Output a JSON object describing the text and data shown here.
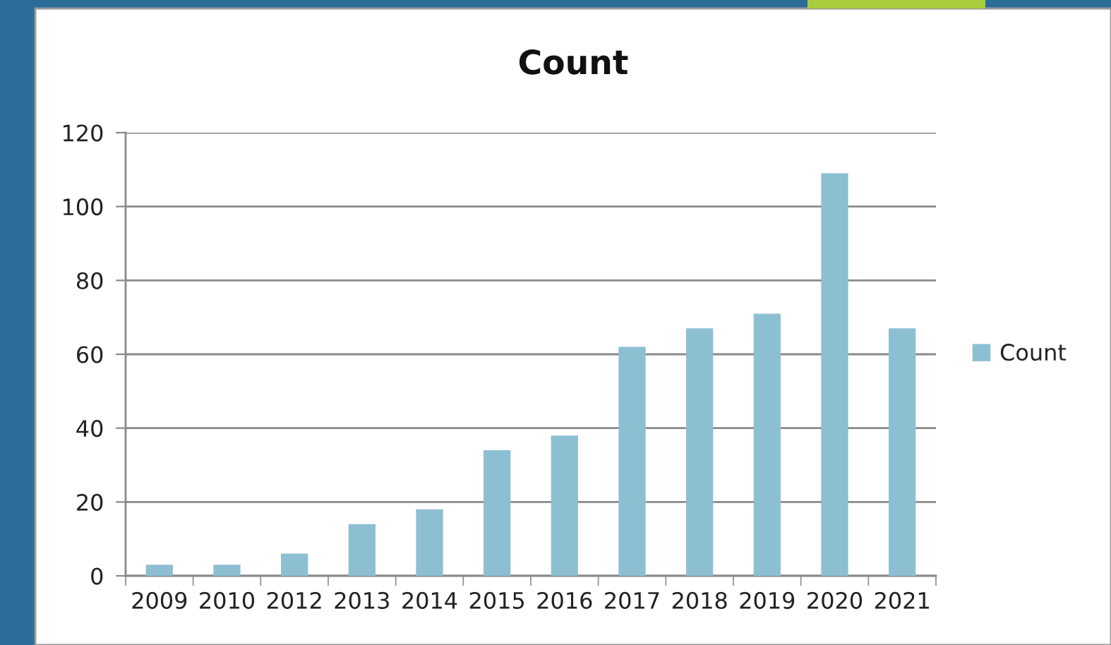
{
  "chart_data": {
    "type": "bar",
    "title": "Count",
    "categories": [
      "2009",
      "2010",
      "2012",
      "2013",
      "2014",
      "2015",
      "2016",
      "2017",
      "2018",
      "2019",
      "2020",
      "2021"
    ],
    "series": [
      {
        "name": "Count",
        "color": "#8dbfd3",
        "values": [
          3,
          3,
          6,
          14,
          18,
          34,
          38,
          62,
          67,
          71,
          109,
          67
        ]
      }
    ],
    "ylim": [
      0,
      120
    ],
    "yticks": [
      0,
      20,
      40,
      60,
      80,
      100,
      120
    ],
    "grid": "y",
    "legend": "right"
  }
}
